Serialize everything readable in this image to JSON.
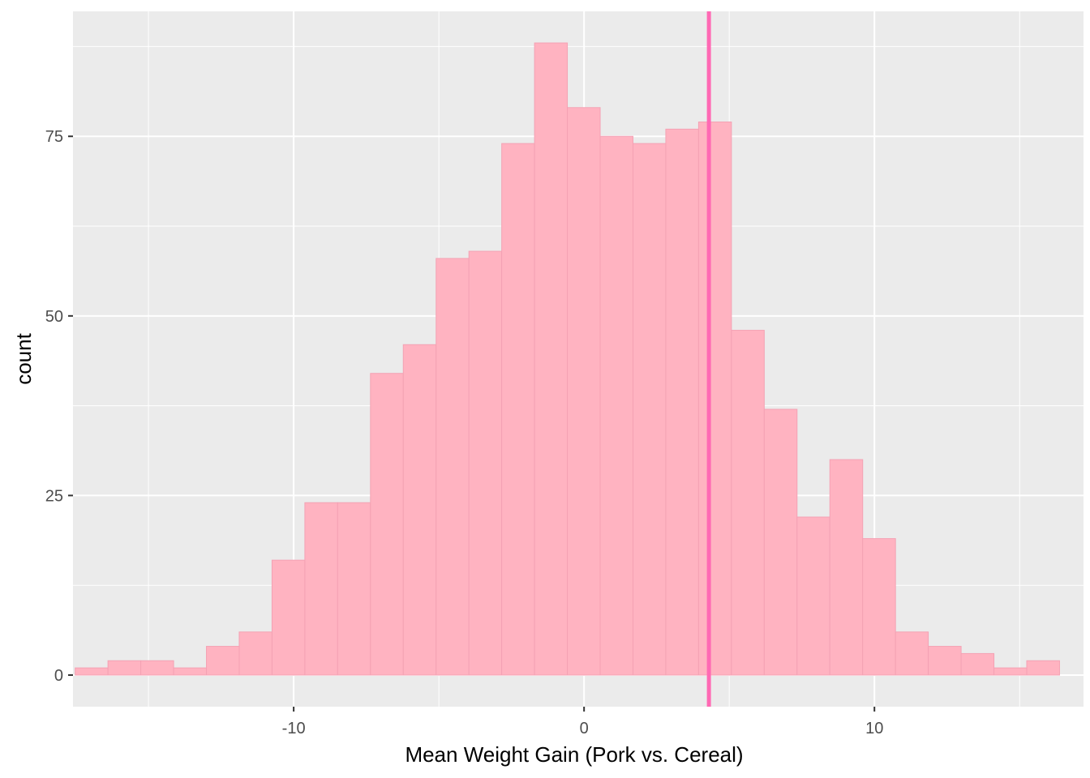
{
  "chart_data": {
    "type": "bar",
    "title": "",
    "xlabel": "Mean Weight Gain (Pork vs. Cereal)",
    "ylabel": "count",
    "xlim": [
      -17.6,
      17.2
    ],
    "ylim": [
      -4.4,
      92.4
    ],
    "x_ticks": [
      {
        "value": -10,
        "label": "-10"
      },
      {
        "value": 0,
        "label": "0"
      },
      {
        "value": 10,
        "label": "10"
      }
    ],
    "x_minor_ticks": [
      -15,
      -5,
      5,
      15
    ],
    "y_ticks": [
      {
        "value": 0,
        "label": "0"
      },
      {
        "value": 25,
        "label": "25"
      },
      {
        "value": 50,
        "label": "50"
      },
      {
        "value": 75,
        "label": "75"
      }
    ],
    "y_minor_ticks": [
      12.5,
      37.5,
      62.5,
      87.5
    ],
    "grid": true,
    "binwidth": 1.13,
    "bins": [
      {
        "x": -16.96,
        "count": 1
      },
      {
        "x": -15.83,
        "count": 2
      },
      {
        "x": -14.7,
        "count": 2
      },
      {
        "x": -13.57,
        "count": 1
      },
      {
        "x": -12.44,
        "count": 4
      },
      {
        "x": -11.31,
        "count": 6
      },
      {
        "x": -10.18,
        "count": 16
      },
      {
        "x": -9.05,
        "count": 24
      },
      {
        "x": -7.92,
        "count": 24
      },
      {
        "x": -6.79,
        "count": 42
      },
      {
        "x": -5.66,
        "count": 46
      },
      {
        "x": -4.53,
        "count": 58
      },
      {
        "x": -3.4,
        "count": 59
      },
      {
        "x": -2.27,
        "count": 74
      },
      {
        "x": -1.14,
        "count": 88
      },
      {
        "x": -0.01,
        "count": 79
      },
      {
        "x": 1.12,
        "count": 75
      },
      {
        "x": 2.25,
        "count": 74
      },
      {
        "x": 3.38,
        "count": 76
      },
      {
        "x": 4.51,
        "count": 77
      },
      {
        "x": 5.64,
        "count": 48
      },
      {
        "x": 6.77,
        "count": 37
      },
      {
        "x": 7.9,
        "count": 22
      },
      {
        "x": 9.03,
        "count": 30
      },
      {
        "x": 10.16,
        "count": 19
      },
      {
        "x": 11.29,
        "count": 6
      },
      {
        "x": 12.42,
        "count": 4
      },
      {
        "x": 13.55,
        "count": 3
      },
      {
        "x": 14.68,
        "count": 1
      },
      {
        "x": 15.81,
        "count": 2
      }
    ],
    "reference_line_x": 4.3,
    "colors": {
      "panel_background": "#EBEBEB",
      "grid": "#FFFFFF",
      "bar_fill": "#FFB3C1",
      "bar_outline": "#F4A2B4",
      "reference_line": "#FF69B4"
    }
  }
}
